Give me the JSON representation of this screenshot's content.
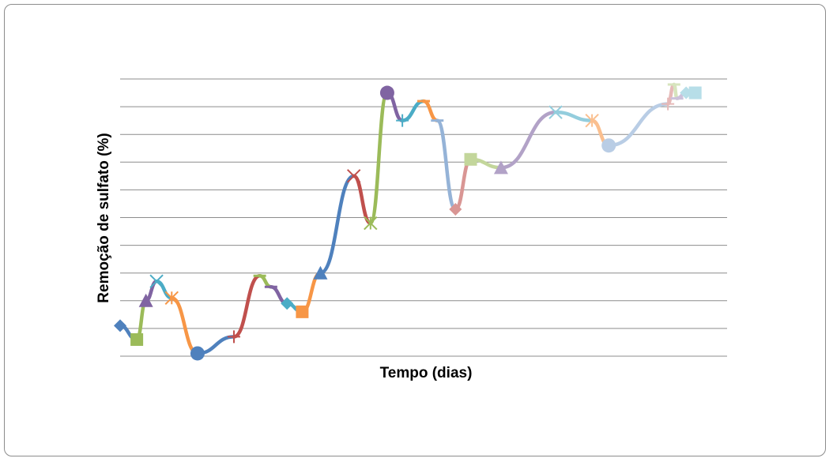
{
  "chart_data": {
    "type": "line",
    "title": "",
    "xlabel": "Tempo (dias)",
    "ylabel": "Remoção de sulfato (%)",
    "grid": true,
    "legend": "none",
    "ylim": [
      0,
      10
    ],
    "xlim": [
      0,
      20
    ],
    "segments": [
      {
        "color": "#4f81bd",
        "marker": "diamond",
        "x": [
          0.0,
          0.55
        ],
        "y": [
          1.1,
          0.6
        ]
      },
      {
        "color": "#9bbb59",
        "marker": "square",
        "x": [
          0.55,
          0.85
        ],
        "y": [
          0.6,
          2.0
        ]
      },
      {
        "color": "#8064a2",
        "marker": "triangle",
        "x": [
          0.85,
          1.2
        ],
        "y": [
          2.0,
          2.7
        ]
      },
      {
        "color": "#4bacc6",
        "marker": "x",
        "x": [
          1.2,
          1.7
        ],
        "y": [
          2.7,
          2.1
        ]
      },
      {
        "color": "#f79646",
        "marker": "star",
        "x": [
          1.7,
          2.55
        ],
        "y": [
          2.1,
          0.1
        ]
      },
      {
        "color": "#4f81bd",
        "marker": "circle",
        "x": [
          2.55,
          3.75
        ],
        "y": [
          0.1,
          0.7
        ]
      },
      {
        "color": "#c0504d",
        "marker": "plus",
        "x": [
          3.75,
          4.6
        ],
        "y": [
          0.7,
          2.9
        ]
      },
      {
        "color": "#9bbb59",
        "marker": "dash",
        "x": [
          4.6,
          4.97
        ],
        "y": [
          2.9,
          2.5
        ]
      },
      {
        "color": "#8064a2",
        "marker": "dash",
        "x": [
          4.97,
          5.5
        ],
        "y": [
          2.5,
          1.9
        ]
      },
      {
        "color": "#4bacc6",
        "marker": "diamond",
        "x": [
          5.5,
          6.0
        ],
        "y": [
          1.9,
          1.6
        ]
      },
      {
        "color": "#f79646",
        "marker": "square",
        "x": [
          6.0,
          6.6
        ],
        "y": [
          1.6,
          3.0
        ]
      },
      {
        "color": "#4f81bd",
        "marker": "triangle",
        "x": [
          6.6,
          7.7
        ],
        "y": [
          3.0,
          6.5
        ]
      },
      {
        "color": "#c0504d",
        "marker": "x",
        "x": [
          7.7,
          8.25
        ],
        "y": [
          6.5,
          4.8
        ]
      },
      {
        "color": "#9bbb59",
        "marker": "star",
        "x": [
          8.25,
          8.8
        ],
        "y": [
          4.8,
          9.5
        ]
      },
      {
        "color": "#8064a2",
        "marker": "circle",
        "x": [
          8.8,
          9.3
        ],
        "y": [
          9.5,
          8.5
        ]
      },
      {
        "color": "#4bacc6",
        "marker": "plus",
        "x": [
          9.3,
          10.0
        ],
        "y": [
          8.5,
          9.2
        ]
      },
      {
        "color": "#f79646",
        "marker": "dash",
        "x": [
          10.0,
          10.45
        ],
        "y": [
          9.2,
          8.5
        ]
      },
      {
        "color": "#95b3d7",
        "marker": "dash",
        "x": [
          10.45,
          11.05
        ],
        "y": [
          8.5,
          5.3
        ]
      },
      {
        "color": "#d99694",
        "marker": "diamond",
        "x": [
          11.05,
          11.55
        ],
        "y": [
          5.3,
          7.1
        ]
      },
      {
        "color": "#c3d69b",
        "marker": "square",
        "x": [
          11.55,
          12.55
        ],
        "y": [
          7.1,
          6.8
        ]
      },
      {
        "color": "#b2a2c7",
        "marker": "triangle",
        "x": [
          12.55,
          14.35
        ],
        "y": [
          6.8,
          8.8
        ]
      },
      {
        "color": "#93cddd",
        "marker": "x",
        "x": [
          14.35,
          15.55
        ],
        "y": [
          8.8,
          8.5
        ]
      },
      {
        "color": "#fabf8f",
        "marker": "star",
        "x": [
          15.55,
          16.1
        ],
        "y": [
          8.5,
          7.6
        ]
      },
      {
        "color": "#b9cde5",
        "marker": "circle",
        "x": [
          16.1,
          18.05
        ],
        "y": [
          7.6,
          9.1
        ]
      },
      {
        "color": "#e6b9b8",
        "marker": "plus",
        "x": [
          18.05,
          18.25
        ],
        "y": [
          9.1,
          9.8
        ]
      },
      {
        "color": "#d7e4bd",
        "marker": "dash",
        "x": [
          18.25,
          18.35
        ],
        "y": [
          9.8,
          9.3
        ]
      },
      {
        "color": "#ccc1da",
        "marker": "dash",
        "x": [
          18.35,
          18.65
        ],
        "y": [
          9.3,
          9.5
        ]
      },
      {
        "color": "#b7dee8",
        "marker": "diamond",
        "x": [
          18.65,
          18.65
        ],
        "y": [
          9.5,
          9.5
        ]
      }
    ],
    "final_marker": {
      "color": "#b7dee8",
      "marker": "square",
      "x": 18.95,
      "y": 9.5
    }
  }
}
